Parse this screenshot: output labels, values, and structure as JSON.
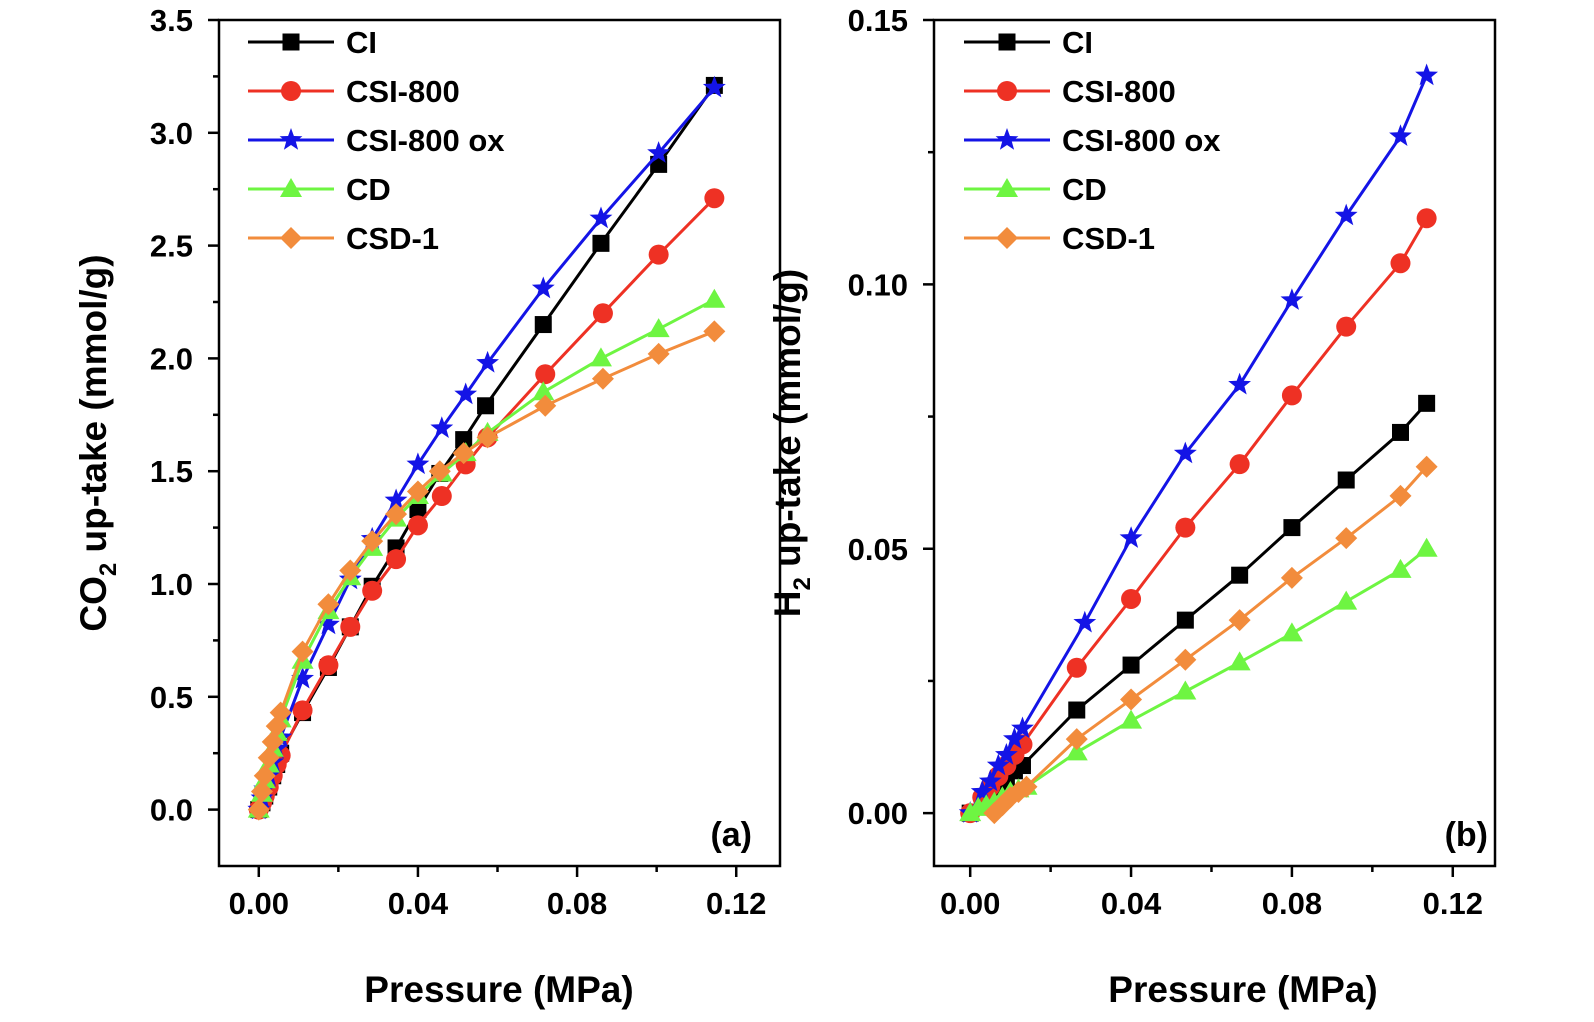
{
  "chart_data": [
    {
      "type": "line",
      "panel_label": "(a)",
      "xlabel": "Pressure (MPa)",
      "ylabel": {
        "prefix": "CO",
        "sub": "2",
        "suffix": " up-take (mmol/g)"
      },
      "xlim": [
        -0.01,
        0.131
      ],
      "ylim": [
        -0.25,
        3.5
      ],
      "xticks": [
        0.0,
        0.04,
        0.08,
        0.12
      ],
      "xtick_labels": [
        "0.00",
        "0.04",
        "0.08",
        "0.12"
      ],
      "yticks": [
        0.0,
        0.5,
        1.0,
        1.5,
        2.0,
        2.5,
        3.0,
        3.5
      ],
      "ytick_labels": [
        "0.0",
        "0.5",
        "1.0",
        "1.5",
        "2.0",
        "2.5",
        "3.0",
        "3.5"
      ],
      "legend_position": "top-left",
      "series": [
        {
          "name": "CI",
          "color": "#000000",
          "marker": "square",
          "x": [
            0.0,
            0.0008,
            0.0015,
            0.0025,
            0.0035,
            0.0045,
            0.0055,
            0.011,
            0.0175,
            0.023,
            0.0285,
            0.0345,
            0.04,
            0.0455,
            0.0515,
            0.057,
            0.0715,
            0.086,
            0.1005,
            0.1145
          ],
          "y": [
            0.0,
            0.03,
            0.06,
            0.1,
            0.15,
            0.2,
            0.25,
            0.43,
            0.63,
            0.81,
            0.99,
            1.16,
            1.33,
            1.49,
            1.64,
            1.79,
            2.15,
            2.51,
            2.86,
            3.21
          ]
        },
        {
          "name": "CSI-800",
          "color": "#ee3124",
          "marker": "circle",
          "x": [
            0.0,
            0.0008,
            0.0015,
            0.0025,
            0.0035,
            0.0045,
            0.0055,
            0.011,
            0.0175,
            0.023,
            0.0285,
            0.0345,
            0.04,
            0.046,
            0.052,
            0.0575,
            0.072,
            0.0865,
            0.1005,
            0.1145
          ],
          "y": [
            0.0,
            0.03,
            0.06,
            0.1,
            0.15,
            0.2,
            0.24,
            0.44,
            0.64,
            0.81,
            0.97,
            1.11,
            1.26,
            1.39,
            1.53,
            1.65,
            1.93,
            2.2,
            2.46,
            2.71
          ]
        },
        {
          "name": "CSI-800 ox",
          "color": "#1414e6",
          "marker": "star",
          "x": [
            0.0,
            0.0008,
            0.0015,
            0.0025,
            0.0035,
            0.0045,
            0.0055,
            0.011,
            0.0175,
            0.023,
            0.0285,
            0.0345,
            0.04,
            0.046,
            0.052,
            0.0575,
            0.0715,
            0.086,
            0.1005,
            0.1145
          ],
          "y": [
            0.0,
            0.05,
            0.09,
            0.15,
            0.21,
            0.27,
            0.32,
            0.58,
            0.82,
            1.02,
            1.2,
            1.37,
            1.53,
            1.69,
            1.84,
            1.98,
            2.31,
            2.62,
            2.91,
            3.2
          ]
        },
        {
          "name": "CD",
          "color": "#6ef542",
          "marker": "triangle",
          "x": [
            0.0,
            0.0008,
            0.0015,
            0.0025,
            0.0035,
            0.0045,
            0.0055,
            0.011,
            0.0175,
            0.023,
            0.0285,
            0.0345,
            0.04,
            0.046,
            0.052,
            0.0575,
            0.0715,
            0.086,
            0.1005,
            0.1145
          ],
          "y": [
            0.0,
            0.07,
            0.13,
            0.2,
            0.27,
            0.34,
            0.4,
            0.66,
            0.88,
            1.03,
            1.16,
            1.29,
            1.39,
            1.49,
            1.58,
            1.67,
            1.85,
            2.0,
            2.13,
            2.26
          ]
        },
        {
          "name": "CSD-1",
          "color": "#f28c3c",
          "marker": "diamond",
          "x": [
            0.0,
            0.0008,
            0.0015,
            0.0025,
            0.0035,
            0.0045,
            0.0055,
            0.011,
            0.0175,
            0.023,
            0.0285,
            0.0345,
            0.04,
            0.0455,
            0.0515,
            0.0575,
            0.072,
            0.0865,
            0.1005,
            0.1145
          ],
          "y": [
            0.0,
            0.08,
            0.15,
            0.23,
            0.3,
            0.37,
            0.43,
            0.7,
            0.91,
            1.06,
            1.19,
            1.31,
            1.41,
            1.5,
            1.58,
            1.65,
            1.79,
            1.91,
            2.02,
            2.12
          ]
        }
      ]
    },
    {
      "type": "line",
      "panel_label": "(b)",
      "xlabel": "Pressure (MPa)",
      "ylabel": {
        "prefix": "H",
        "sub": "2",
        "suffix": " up-take (mmol/g)"
      },
      "xlim": [
        -0.009,
        0.1305
      ],
      "ylim": [
        -0.01,
        0.15
      ],
      "xticks": [
        0.0,
        0.04,
        0.08,
        0.12
      ],
      "xtick_labels": [
        "0.00",
        "0.04",
        "0.08",
        "0.12"
      ],
      "yticks": [
        0.0,
        0.05,
        0.1,
        0.15
      ],
      "ytick_labels": [
        "0.00",
        "0.05",
        "0.10",
        "0.15"
      ],
      "legend_position": "top-left",
      "series": [
        {
          "name": "CI",
          "color": "#000000",
          "marker": "square",
          "x": [
            0.0,
            0.003,
            0.005,
            0.007,
            0.009,
            0.011,
            0.013,
            0.0265,
            0.04,
            0.0535,
            0.067,
            0.08,
            0.0935,
            0.107,
            0.1135
          ],
          "y": [
            0.0,
            0.002,
            0.003,
            0.005,
            0.006,
            0.008,
            0.009,
            0.0195,
            0.028,
            0.0365,
            0.045,
            0.054,
            0.063,
            0.072,
            0.0775
          ]
        },
        {
          "name": "CSI-800",
          "color": "#ee3124",
          "marker": "circle",
          "x": [
            0.0,
            0.003,
            0.005,
            0.007,
            0.009,
            0.011,
            0.013,
            0.0265,
            0.04,
            0.0535,
            0.067,
            0.08,
            0.0935,
            0.107,
            0.1135
          ],
          "y": [
            0.0,
            0.003,
            0.005,
            0.007,
            0.009,
            0.011,
            0.013,
            0.0275,
            0.0405,
            0.054,
            0.066,
            0.079,
            0.092,
            0.104,
            0.1125
          ]
        },
        {
          "name": "CSI-800 ox",
          "color": "#1414e6",
          "marker": "star",
          "x": [
            0.0,
            0.003,
            0.005,
            0.007,
            0.009,
            0.011,
            0.013,
            0.0285,
            0.04,
            0.0535,
            0.067,
            0.08,
            0.0935,
            0.107,
            0.1135
          ],
          "y": [
            0.0,
            0.004,
            0.006,
            0.009,
            0.011,
            0.014,
            0.016,
            0.036,
            0.052,
            0.068,
            0.081,
            0.097,
            0.113,
            0.128,
            0.1395
          ]
        },
        {
          "name": "CD",
          "color": "#6ef542",
          "marker": "triangle",
          "x": [
            0.0,
            0.002,
            0.004,
            0.006,
            0.008,
            0.01,
            0.012,
            0.014,
            0.0265,
            0.04,
            0.0535,
            0.067,
            0.08,
            0.0935,
            0.107,
            0.1135
          ],
          "y": [
            0.0,
            0.001,
            0.0015,
            0.002,
            0.003,
            0.004,
            0.0045,
            0.005,
            0.0115,
            0.0175,
            0.023,
            0.0285,
            0.034,
            0.04,
            0.046,
            0.05
          ]
        },
        {
          "name": "CSD-1",
          "color": "#f28c3c",
          "marker": "diamond",
          "x": [
            0.006,
            0.008,
            0.01,
            0.012,
            0.014,
            0.0265,
            0.04,
            0.0535,
            0.067,
            0.08,
            0.0935,
            0.107,
            0.1135
          ],
          "y": [
            0.0,
            0.0015,
            0.003,
            0.004,
            0.005,
            0.014,
            0.0215,
            0.029,
            0.0365,
            0.0445,
            0.052,
            0.06,
            0.0655
          ]
        }
      ]
    }
  ]
}
